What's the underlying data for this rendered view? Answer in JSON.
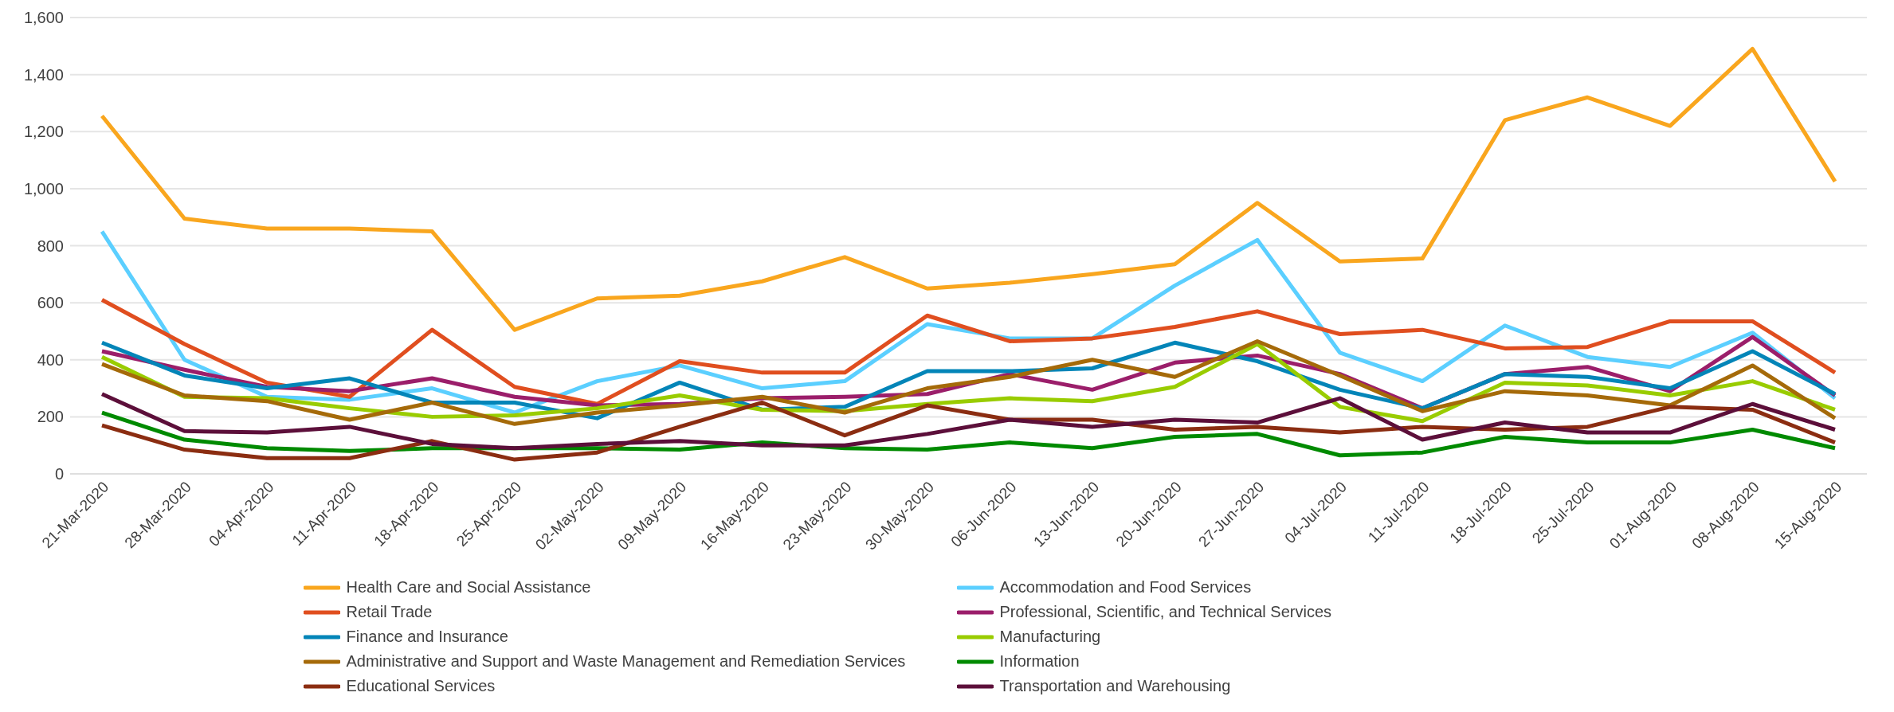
{
  "chart_data": {
    "type": "line",
    "categories": [
      "21-Mar-2020",
      "28-Mar-2020",
      "04-Apr-2020",
      "11-Apr-2020",
      "18-Apr-2020",
      "25-Apr-2020",
      "02-May-2020",
      "09-May-2020",
      "16-May-2020",
      "23-May-2020",
      "30-May-2020",
      "06-Jun-2020",
      "13-Jun-2020",
      "20-Jun-2020",
      "27-Jun-2020",
      "04-Jul-2020",
      "11-Jul-2020",
      "18-Jul-2020",
      "25-Jul-2020",
      "01-Aug-2020",
      "08-Aug-2020",
      "15-Aug-2020"
    ],
    "series": [
      {
        "name": "Health Care and Social Assistance",
        "color": "#f9a61e",
        "values": [
          1255,
          895,
          860,
          860,
          850,
          505,
          615,
          625,
          675,
          760,
          650,
          670,
          700,
          735,
          950,
          745,
          755,
          1240,
          1320,
          1220,
          1490,
          1025
        ]
      },
      {
        "name": "Accommodation and Food Services",
        "color": "#5bcfff",
        "values": [
          850,
          400,
          270,
          260,
          300,
          215,
          325,
          380,
          300,
          325,
          525,
          475,
          475,
          660,
          820,
          425,
          325,
          520,
          410,
          375,
          495,
          265
        ]
      },
      {
        "name": "Retail Trade",
        "color": "#e04e1f",
        "values": [
          610,
          455,
          320,
          270,
          505,
          305,
          245,
          395,
          355,
          355,
          555,
          465,
          475,
          515,
          570,
          490,
          505,
          440,
          445,
          535,
          535,
          355
        ]
      },
      {
        "name": "Professional, Scientific, and Technical Services",
        "color": "#9b1e6a",
        "values": [
          430,
          365,
          305,
          290,
          335,
          270,
          240,
          245,
          265,
          270,
          280,
          350,
          295,
          390,
          415,
          350,
          230,
          350,
          375,
          290,
          480,
          275
        ]
      },
      {
        "name": "Finance and Insurance",
        "color": "#0385b8",
        "values": [
          460,
          345,
          300,
          335,
          250,
          250,
          195,
          320,
          225,
          235,
          360,
          360,
          370,
          460,
          395,
          295,
          230,
          350,
          340,
          300,
          430,
          280
        ]
      },
      {
        "name": "Manufacturing",
        "color": "#99cc00",
        "values": [
          410,
          270,
          265,
          230,
          200,
          205,
          230,
          275,
          225,
          220,
          245,
          265,
          255,
          305,
          455,
          235,
          185,
          320,
          310,
          275,
          325,
          225
        ]
      },
      {
        "name": "Administrative and Support and Waste Management and Remediation Services",
        "color": "#a56a09",
        "values": [
          385,
          275,
          255,
          190,
          250,
          175,
          215,
          240,
          270,
          215,
          300,
          340,
          400,
          340,
          465,
          345,
          220,
          290,
          275,
          240,
          380,
          195
        ]
      },
      {
        "name": "Information",
        "color": "#008a00",
        "values": [
          215,
          120,
          90,
          80,
          90,
          90,
          90,
          85,
          110,
          90,
          85,
          110,
          90,
          130,
          140,
          65,
          75,
          130,
          110,
          110,
          155,
          90
        ]
      },
      {
        "name": "Educational Services",
        "color": "#8b2d11",
        "values": [
          170,
          85,
          55,
          55,
          115,
          50,
          75,
          165,
          250,
          135,
          240,
          190,
          190,
          155,
          165,
          145,
          165,
          155,
          165,
          235,
          225,
          110
        ]
      },
      {
        "name": "Transportation and Warehousing",
        "color": "#5c0f3a",
        "values": [
          280,
          150,
          145,
          165,
          105,
          90,
          105,
          115,
          100,
          100,
          140,
          190,
          165,
          190,
          180,
          265,
          120,
          180,
          145,
          145,
          245,
          155
        ]
      }
    ],
    "ylim": [
      0,
      1600
    ],
    "yticks": [
      {
        "value": 0,
        "label": "0"
      },
      {
        "value": 200,
        "label": "200"
      },
      {
        "value": 400,
        "label": "400"
      },
      {
        "value": 600,
        "label": "600"
      },
      {
        "value": 800,
        "label": "800"
      },
      {
        "value": 1000,
        "label": "1,000"
      },
      {
        "value": 1200,
        "label": "1,200"
      },
      {
        "value": 1400,
        "label": "1,400"
      },
      {
        "value": 1600,
        "label": "1,600"
      }
    ],
    "grid": "y",
    "legend": "bottom",
    "marker": "none",
    "line_style": "solid"
  }
}
